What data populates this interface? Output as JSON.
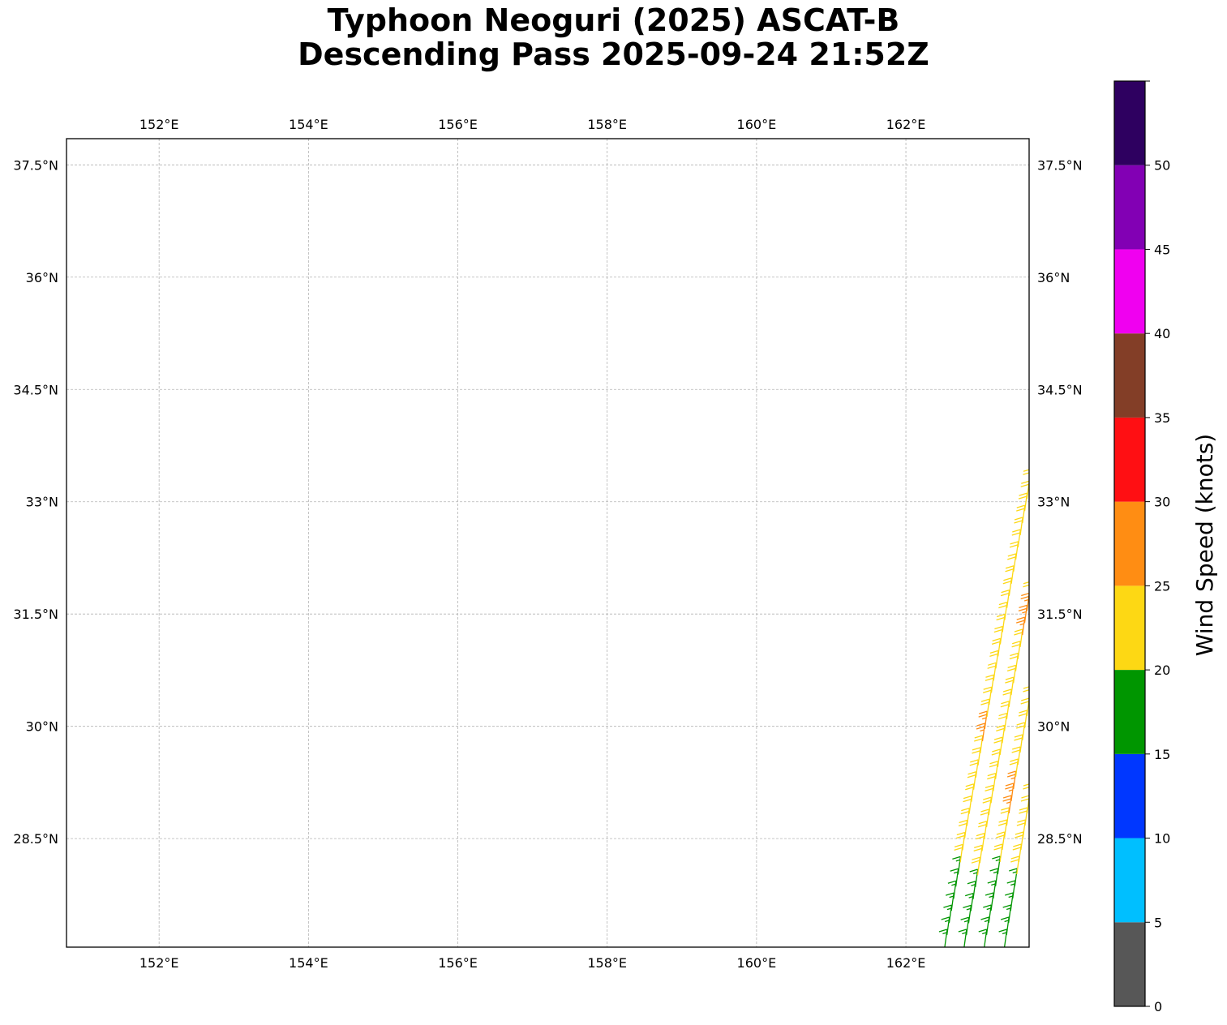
{
  "title": {
    "line1": "Typhoon Neoguri (2025) ASCAT-B",
    "line2": "Descending Pass 2025-09-24 21:52Z"
  },
  "map": {
    "lon_range": [
      150.76,
      163.65
    ],
    "lat_range": [
      27.05,
      37.85
    ],
    "gridlines": true,
    "lon_ticks": [
      {
        "value": 152,
        "label": "152°E"
      },
      {
        "value": 154,
        "label": "154°E"
      },
      {
        "value": 156,
        "label": "156°E"
      },
      {
        "value": 158,
        "label": "158°E"
      },
      {
        "value": 160,
        "label": "160°E"
      },
      {
        "value": 162,
        "label": "162°E"
      }
    ],
    "lat_ticks": [
      {
        "value": 28.5,
        "label": "28.5°N"
      },
      {
        "value": 30,
        "label": "30°N"
      },
      {
        "value": 31.5,
        "label": "31.5°N"
      },
      {
        "value": 33,
        "label": "33°N"
      },
      {
        "value": 34.5,
        "label": "34.5°N"
      },
      {
        "value": 36,
        "label": "36°N"
      },
      {
        "value": 37.5,
        "label": "37.5°N"
      }
    ],
    "swath": {
      "color_by": "wind speed",
      "rows": [
        {
          "lon_start": 162.52,
          "lat_start": 27.05,
          "lon_end": 163.65,
          "lat_end": 33.2
        },
        {
          "lon_start": 162.78,
          "lat_start": 27.05,
          "lon_end": 163.65,
          "lat_end": 31.7
        },
        {
          "lon_start": 163.05,
          "lat_start": 27.05,
          "lon_end": 163.65,
          "lat_end": 30.3
        },
        {
          "lon_start": 163.32,
          "lat_start": 27.05,
          "lon_end": 163.65,
          "lat_end": 29.0
        }
      ],
      "spacing_deg": 0.16
    }
  },
  "colorbar": {
    "label": "Wind Speed (knots)",
    "min": 0,
    "max": 55,
    "bins": [
      {
        "from": 0,
        "to": 5,
        "color": "#575757"
      },
      {
        "from": 5,
        "to": 10,
        "color": "#00bfff"
      },
      {
        "from": 10,
        "to": 15,
        "color": "#0037ff"
      },
      {
        "from": 15,
        "to": 20,
        "color": "#009600"
      },
      {
        "from": 20,
        "to": 25,
        "color": "#fdd814"
      },
      {
        "from": 25,
        "to": 30,
        "color": "#ff8d13"
      },
      {
        "from": 30,
        "to": 35,
        "color": "#ff0f13"
      },
      {
        "from": 35,
        "to": 40,
        "color": "#833e27"
      },
      {
        "from": 40,
        "to": 45,
        "color": "#f000f0"
      },
      {
        "from": 45,
        "to": 50,
        "color": "#8200b4"
      },
      {
        "from": 50,
        "to": 55,
        "color": "#2e0060"
      }
    ],
    "ticks": [
      0,
      5,
      10,
      15,
      20,
      25,
      30,
      35,
      40,
      45,
      50
    ]
  }
}
